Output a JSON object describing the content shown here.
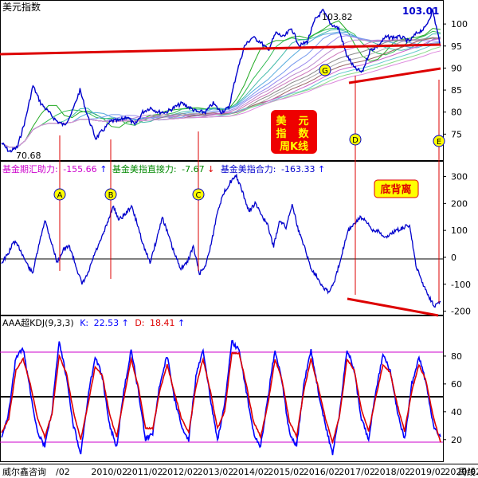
{
  "colors": {
    "background": "#ffffff",
    "frame": "#000000",
    "price": "#0000cc",
    "oscillator": "#0000cc",
    "k_line": "#0000ff",
    "d_line": "#dd0000",
    "ref_line": "#cc00cc",
    "annotation": "#dd0000",
    "marker_fill": "#ffff00",
    "tag_fill": "#ee0000",
    "tag_text": "#ffff00"
  },
  "footer": {
    "brand": "威尔鑫咨询",
    "period": "周线",
    "x_labels": [
      "/02",
      "2010/02",
      "2011/02",
      "2012/02",
      "2013/02",
      "2014/02",
      "2015/02",
      "2016/02",
      "2017/02",
      "2018/02",
      "2019/02",
      "2020/02"
    ]
  },
  "chart_data": [
    {
      "type": "line",
      "title": "美元指数",
      "ylim": [
        70,
        104
      ],
      "y_ticks": [
        75,
        80,
        85,
        90,
        95,
        100
      ],
      "annotations": {
        "high_value": "103.82",
        "low_value": "70.68",
        "last_value": "103.01",
        "tag_lines": [
          "美",
          "元",
          "指",
          "数",
          "周K线"
        ],
        "markers": [
          "G"
        ]
      },
      "series": [
        {
          "values": [
            73,
            71,
            72,
            78,
            86,
            82,
            80,
            78,
            77,
            80,
            85,
            79,
            74,
            76,
            78,
            78,
            79,
            77,
            80,
            81,
            80,
            80,
            81,
            82,
            81,
            80,
            80,
            82,
            80,
            81,
            89,
            95,
            97,
            96,
            94,
            98,
            97,
            99,
            95,
            96,
            101,
            103,
            100,
            99,
            93,
            90,
            89,
            94,
            95,
            97,
            97,
            97,
            96,
            98,
            99,
            103,
            95
          ]
        }
      ]
    },
    {
      "type": "line",
      "title": "",
      "ylim": [
        -210,
        340
      ],
      "y_ticks": [
        -200,
        -100,
        0,
        100,
        200,
        300
      ],
      "legend": [
        {
          "label": "基金期汇助力:",
          "value": "-155.66",
          "arrow": "↑"
        },
        {
          "label": "基金美指直接力:",
          "value": "-7.67",
          "arrow": "↓"
        },
        {
          "label": "基金美指合力:",
          "value": "-163.33",
          "arrow": "↑"
        }
      ],
      "annotations": {
        "tag": "底背离",
        "markers": [
          "A",
          "B",
          "C",
          "D",
          "E"
        ]
      },
      "series": [
        {
          "values": [
            -20,
            10,
            60,
            30,
            -20,
            -60,
            40,
            140,
            60,
            -20,
            30,
            40,
            -30,
            -100,
            -60,
            10,
            60,
            120,
            190,
            140,
            160,
            190,
            120,
            40,
            -20,
            60,
            150,
            80,
            10,
            -40,
            -20,
            40,
            -60,
            -30,
            60,
            180,
            240,
            280,
            300,
            240,
            170,
            200,
            160,
            120,
            40,
            140,
            110,
            200,
            100,
            40,
            -40,
            -70,
            -110,
            -130,
            -80,
            10,
            100,
            120,
            150,
            130,
            100,
            100,
            70,
            90,
            100,
            110,
            120,
            -30,
            -90,
            -140,
            -180,
            -163
          ]
        }
      ]
    },
    {
      "type": "line",
      "title": "AAA超KDJ(9,3,3)",
      "ylim": [
        5,
        100
      ],
      "y_ticks": [
        20,
        40,
        60,
        80
      ],
      "legend": [
        {
          "label": "K:",
          "value": "22.53",
          "arrow": "↑"
        },
        {
          "label": "D:",
          "value": "18.41",
          "arrow": "↑"
        }
      ],
      "series": [
        {
          "name": "K",
          "values": [
            20,
            40,
            80,
            85,
            55,
            25,
            15,
            40,
            90,
            65,
            30,
            10,
            50,
            80,
            65,
            30,
            15,
            55,
            85,
            55,
            20,
            25,
            60,
            80,
            50,
            30,
            20,
            65,
            85,
            50,
            20,
            45,
            90,
            85,
            55,
            25,
            15,
            50,
            85,
            60,
            25,
            15,
            60,
            85,
            55,
            30,
            10,
            40,
            85,
            70,
            35,
            20,
            55,
            80,
            70,
            40,
            20,
            60,
            80,
            60,
            30,
            22
          ]
        },
        {
          "name": "D",
          "values": [
            25,
            35,
            70,
            78,
            60,
            35,
            22,
            38,
            80,
            68,
            40,
            20,
            45,
            72,
            66,
            38,
            22,
            50,
            78,
            58,
            28,
            28,
            55,
            74,
            54,
            35,
            25,
            58,
            78,
            55,
            28,
            40,
            82,
            82,
            60,
            33,
            22,
            45,
            78,
            62,
            33,
            22,
            55,
            78,
            58,
            35,
            18,
            38,
            78,
            70,
            42,
            26,
            50,
            74,
            68,
            45,
            26,
            55,
            74,
            62,
            36,
            18
          ]
        }
      ]
    }
  ]
}
